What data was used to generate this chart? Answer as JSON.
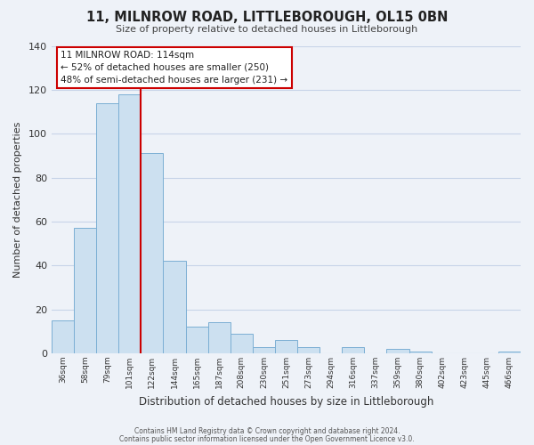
{
  "title": "11, MILNROW ROAD, LITTLEBOROUGH, OL15 0BN",
  "subtitle": "Size of property relative to detached houses in Littleborough",
  "xlabel": "Distribution of detached houses by size in Littleborough",
  "ylabel": "Number of detached properties",
  "bar_labels": [
    "36sqm",
    "58sqm",
    "79sqm",
    "101sqm",
    "122sqm",
    "144sqm",
    "165sqm",
    "187sqm",
    "208sqm",
    "230sqm",
    "251sqm",
    "273sqm",
    "294sqm",
    "316sqm",
    "337sqm",
    "359sqm",
    "380sqm",
    "402sqm",
    "423sqm",
    "445sqm",
    "466sqm"
  ],
  "bar_values": [
    15,
    57,
    114,
    118,
    91,
    42,
    12,
    14,
    9,
    3,
    6,
    3,
    0,
    3,
    0,
    2,
    1,
    0,
    0,
    0,
    1
  ],
  "bar_fill_color": "#cce0f0",
  "bar_edge_color": "#7bafd4",
  "vline_color": "#cc0000",
  "vline_x_index": 3.5,
  "ylim": [
    0,
    140
  ],
  "yticks": [
    0,
    20,
    40,
    60,
    80,
    100,
    120,
    140
  ],
  "annotation_text_line1": "11 MILNROW ROAD: 114sqm",
  "annotation_text_line2": "← 52% of detached houses are smaller (250)",
  "annotation_text_line3": "48% of semi-detached houses are larger (231) →",
  "footnote1": "Contains HM Land Registry data © Crown copyright and database right 2024.",
  "footnote2": "Contains public sector information licensed under the Open Government Licence v3.0.",
  "background_color": "#eef2f8",
  "plot_bg_color": "#eef2f8",
  "grid_color": "#c8d4e8"
}
